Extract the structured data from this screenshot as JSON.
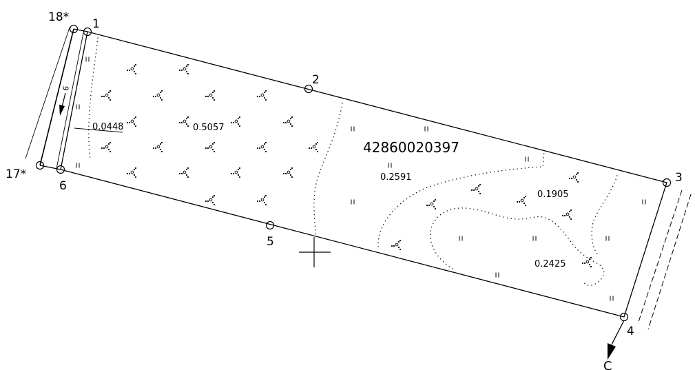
{
  "plot": {
    "parcel_number": "42860020397",
    "points": {
      "p1": "1",
      "p2": "2",
      "p3": "3",
      "p4": "4",
      "p5": "5",
      "p6": "6",
      "p17": "17*",
      "p18": "18*"
    },
    "areas": {
      "a1": "0.0448",
      "a2": "0.5057",
      "a3": "0.2591",
      "a4": "0.1905",
      "a5": "0.2425"
    },
    "side_width": "9",
    "north_label": "С"
  },
  "symbols": {
    "bush_count": 30,
    "meadow_marks": 16
  }
}
